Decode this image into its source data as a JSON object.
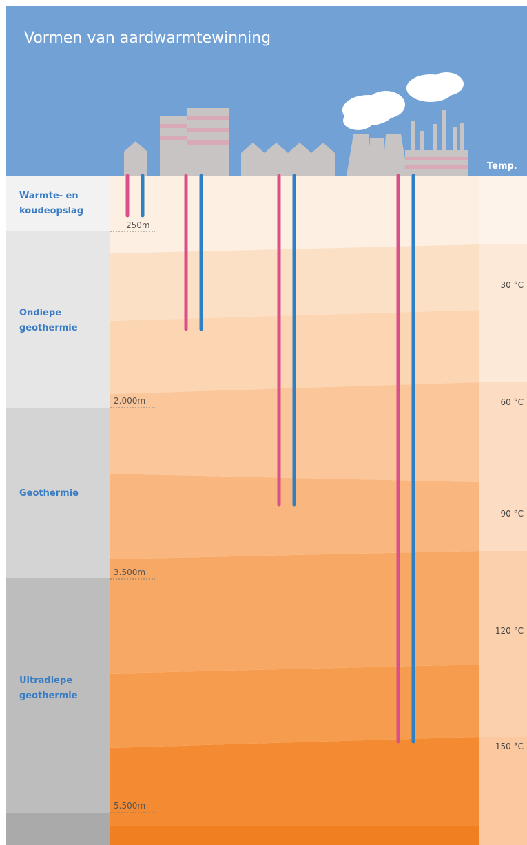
{
  "title": "Vormen van aardwarmtewinning",
  "temp_header": "Temp.",
  "zones": [
    {
      "lines": [
        "Warmte- en",
        "koudeopslag"
      ]
    },
    {
      "lines": [
        "Ondiepe",
        "geothermie"
      ]
    },
    {
      "lines": [
        "Geothermie"
      ]
    },
    {
      "lines": [
        "Ultradiepe",
        "geothermie"
      ]
    }
  ],
  "depths": [
    "250m",
    "2.000m",
    "3.500m",
    "5.500m"
  ],
  "temperatures": [
    "30 °C",
    "60 °C",
    "90 °C",
    "120 °C",
    "150 °C"
  ]
}
